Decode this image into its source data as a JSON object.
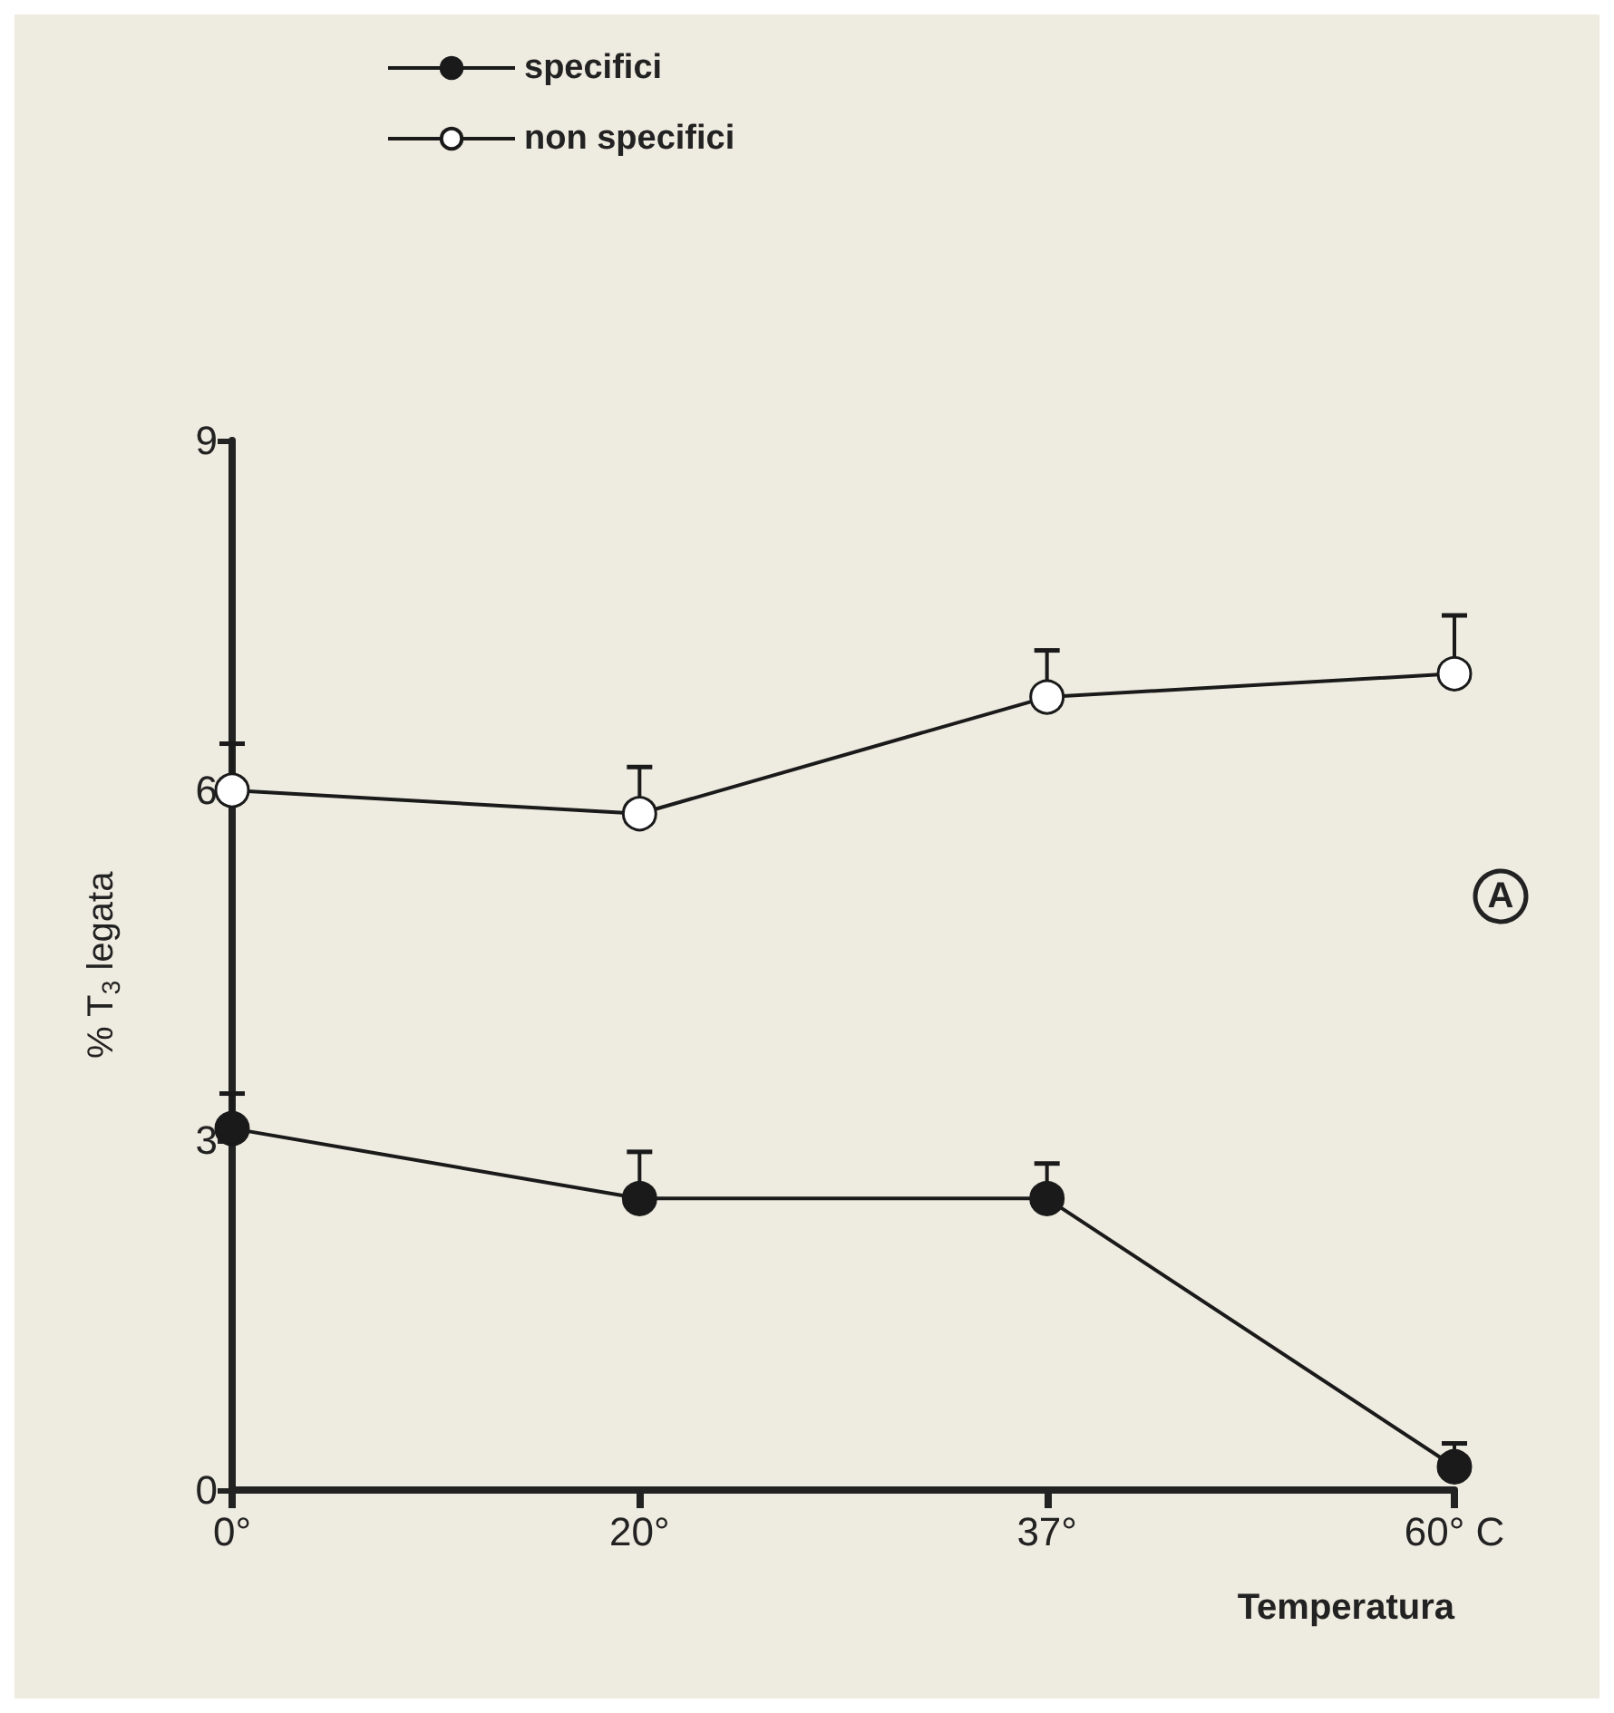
{
  "chart_data": {
    "type": "line",
    "xlabel": "Temperatura",
    "ylabel": "% T$_{3}$ legata",
    "categories": [
      "0°",
      "20°",
      "37°",
      "60° C"
    ],
    "ylim": [
      0,
      9
    ],
    "yticks": [
      0,
      3,
      6,
      9
    ],
    "grid": false,
    "legend": "top left",
    "marker": "circle",
    "line_style": "solid",
    "series": [
      {
        "name": "specifici",
        "color": "#1a1a1a",
        "values": [
          3.1,
          2.5,
          2.5,
          0.2
        ],
        "errors": [
          [
            3.1,
            3.4
          ],
          [
            2.5,
            2.9
          ],
          [
            2.5,
            2.8
          ],
          [
            0.2,
            0.4
          ]
        ]
      },
      {
        "name": "non specifici",
        "color": "#1a1a1a",
        "values": [
          6.0,
          5.8,
          6.8,
          7.0
        ],
        "errors": [
          [
            6.0,
            6.4
          ],
          [
            5.8,
            6.2
          ],
          [
            6.8,
            7.2
          ],
          [
            7.0,
            7.5
          ]
        ]
      }
    ],
    "annotations": [
      "A"
    ]
  }
}
